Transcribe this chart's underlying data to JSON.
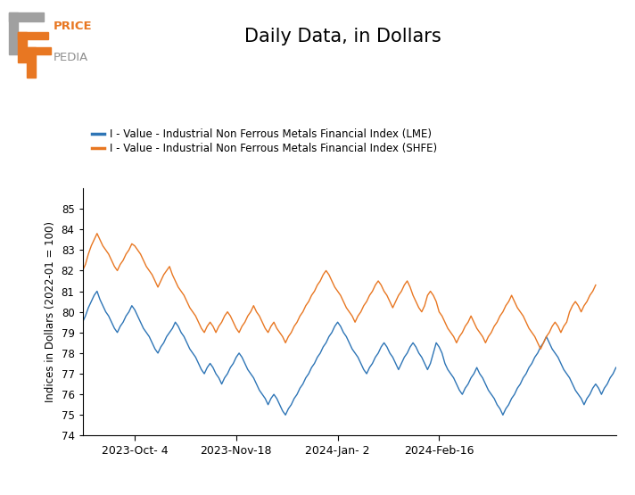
{
  "title": "Daily Data, in Dollars",
  "ylabel": "Indices in Dollars (2022-01 = 100)",
  "legend_lme": "I - Value - Industrial Non Ferrous Metals Financial Index (LME)",
  "legend_shfe": "I - Value - Industrial Non Ferrous Metals Financial Index (SHFE)",
  "lme_color": "#2E75B6",
  "shfe_color": "#E87722",
  "ylim": [
    74,
    86
  ],
  "yticks": [
    74,
    75,
    76,
    77,
    78,
    79,
    80,
    81,
    82,
    83,
    84,
    85
  ],
  "xtick_labels": [
    "2023-Oct- 4",
    "2023-Nov-18",
    "2024-Jan- 2",
    "2024-Feb-16"
  ],
  "background_color": "#ffffff",
  "lme_data": [
    79.5,
    79.8,
    80.2,
    80.5,
    80.8,
    81.0,
    80.6,
    80.3,
    80.0,
    79.8,
    79.5,
    79.2,
    79.0,
    79.3,
    79.5,
    79.8,
    80.0,
    80.3,
    80.1,
    79.8,
    79.5,
    79.2,
    79.0,
    78.8,
    78.5,
    78.2,
    78.0,
    78.3,
    78.5,
    78.8,
    79.0,
    79.2,
    79.5,
    79.3,
    79.0,
    78.8,
    78.5,
    78.2,
    78.0,
    77.8,
    77.5,
    77.2,
    77.0,
    77.3,
    77.5,
    77.3,
    77.0,
    76.8,
    76.5,
    76.8,
    77.0,
    77.3,
    77.5,
    77.8,
    78.0,
    77.8,
    77.5,
    77.2,
    77.0,
    76.8,
    76.5,
    76.2,
    76.0,
    75.8,
    75.5,
    75.8,
    76.0,
    75.8,
    75.5,
    75.2,
    75.0,
    75.3,
    75.5,
    75.8,
    76.0,
    76.3,
    76.5,
    76.8,
    77.0,
    77.3,
    77.5,
    77.8,
    78.0,
    78.3,
    78.5,
    78.8,
    79.0,
    79.3,
    79.5,
    79.3,
    79.0,
    78.8,
    78.5,
    78.2,
    78.0,
    77.8,
    77.5,
    77.2,
    77.0,
    77.3,
    77.5,
    77.8,
    78.0,
    78.3,
    78.5,
    78.3,
    78.0,
    77.8,
    77.5,
    77.2,
    77.5,
    77.8,
    78.0,
    78.3,
    78.5,
    78.3,
    78.0,
    77.8,
    77.5,
    77.2,
    77.5,
    78.0,
    78.5,
    78.3,
    78.0,
    77.5,
    77.2,
    77.0,
    76.8,
    76.5,
    76.2,
    76.0,
    76.3,
    76.5,
    76.8,
    77.0,
    77.3,
    77.0,
    76.8,
    76.5,
    76.2,
    76.0,
    75.8,
    75.5,
    75.3,
    75.0,
    75.3,
    75.5,
    75.8,
    76.0,
    76.3,
    76.5,
    76.8,
    77.0,
    77.3,
    77.5,
    77.8,
    78.0,
    78.3,
    78.5,
    78.8,
    78.5,
    78.2,
    78.0,
    77.8,
    77.5,
    77.2,
    77.0,
    76.8,
    76.5,
    76.2,
    76.0,
    75.8,
    75.5,
    75.8,
    76.0,
    76.3,
    76.5,
    76.3,
    76.0,
    76.3,
    76.5,
    76.8,
    77.0,
    77.3
  ],
  "shfe_data": [
    82.0,
    82.3,
    82.8,
    83.2,
    83.5,
    83.8,
    83.5,
    83.2,
    83.0,
    82.8,
    82.5,
    82.2,
    82.0,
    82.3,
    82.5,
    82.8,
    83.0,
    83.3,
    83.2,
    83.0,
    82.8,
    82.5,
    82.2,
    82.0,
    81.8,
    81.5,
    81.2,
    81.5,
    81.8,
    82.0,
    82.2,
    81.8,
    81.5,
    81.2,
    81.0,
    80.8,
    80.5,
    80.2,
    80.0,
    79.8,
    79.5,
    79.2,
    79.0,
    79.3,
    79.5,
    79.3,
    79.0,
    79.3,
    79.5,
    79.8,
    80.0,
    79.8,
    79.5,
    79.2,
    79.0,
    79.3,
    79.5,
    79.8,
    80.0,
    80.3,
    80.0,
    79.8,
    79.5,
    79.2,
    79.0,
    79.3,
    79.5,
    79.2,
    79.0,
    78.8,
    78.5,
    78.8,
    79.0,
    79.3,
    79.5,
    79.8,
    80.0,
    80.3,
    80.5,
    80.8,
    81.0,
    81.3,
    81.5,
    81.8,
    82.0,
    81.8,
    81.5,
    81.2,
    81.0,
    80.8,
    80.5,
    80.2,
    80.0,
    79.8,
    79.5,
    79.8,
    80.0,
    80.3,
    80.5,
    80.8,
    81.0,
    81.3,
    81.5,
    81.3,
    81.0,
    80.8,
    80.5,
    80.2,
    80.5,
    80.8,
    81.0,
    81.3,
    81.5,
    81.2,
    80.8,
    80.5,
    80.2,
    80.0,
    80.3,
    80.8,
    81.0,
    80.8,
    80.5,
    80.0,
    79.8,
    79.5,
    79.2,
    79.0,
    78.8,
    78.5,
    78.8,
    79.0,
    79.3,
    79.5,
    79.8,
    79.5,
    79.2,
    79.0,
    78.8,
    78.5,
    78.8,
    79.0,
    79.3,
    79.5,
    79.8,
    80.0,
    80.3,
    80.5,
    80.8,
    80.5,
    80.2,
    80.0,
    79.8,
    79.5,
    79.2,
    79.0,
    78.8,
    78.5,
    78.2,
    78.5,
    78.8,
    79.0,
    79.3,
    79.5,
    79.3,
    79.0,
    79.3,
    79.5,
    80.0,
    80.3,
    80.5,
    80.3,
    80.0,
    80.3,
    80.5,
    80.8,
    81.0,
    81.3
  ]
}
